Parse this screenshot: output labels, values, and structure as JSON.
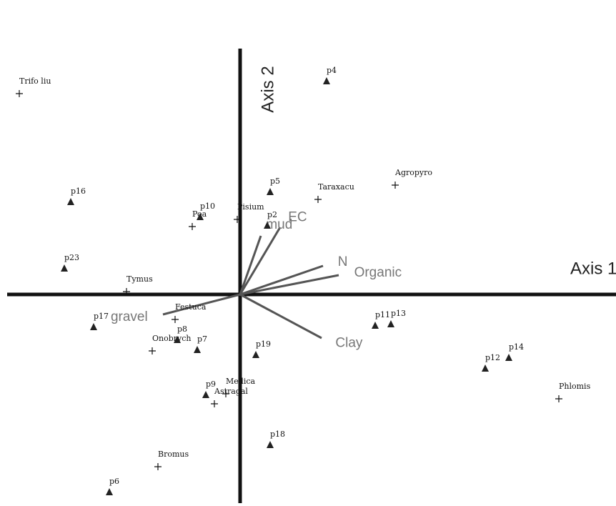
{
  "chart_data": {
    "type": "biplot",
    "x_label": "Axis 1",
    "y_label": "Axis 2",
    "xlim": [
      -3.36,
      5.26
    ],
    "ylim": [
      -2.92,
      4.12
    ],
    "axis_color": "#111",
    "site_color": "#222",
    "species_color": "#111",
    "vector_color": "#555",
    "sites": {
      "names": [
        "p4",
        "p16",
        "p23",
        "p5",
        "p10",
        "p2",
        "p17",
        "p8",
        "p7",
        "p19",
        "p11",
        "p13",
        "p12",
        "p14",
        "p9",
        "p18",
        "p6"
      ],
      "x": [
        1.21,
        -2.37,
        -2.46,
        0.42,
        -0.56,
        0.38,
        -2.05,
        -0.88,
        -0.6,
        0.22,
        1.89,
        2.11,
        3.43,
        3.76,
        -0.48,
        0.42,
        -1.83
      ],
      "y": [
        2.98,
        1.29,
        0.36,
        1.43,
        1.08,
        0.96,
        -0.46,
        -0.64,
        -0.78,
        -0.85,
        -0.44,
        -0.42,
        -1.04,
        -0.89,
        -1.41,
        -2.11,
        -2.77
      ]
    },
    "species": {
      "names": [
        "Trifo liu",
        "Agropyro",
        "Taraxacu",
        "Poa",
        "Pisium",
        "Tymus",
        "Festuca",
        "Onobrych",
        "Medica",
        "Astragal",
        "Phlomis",
        "Bromus"
      ],
      "x": [
        -3.09,
        2.17,
        1.09,
        -0.67,
        -0.04,
        -1.59,
        -0.91,
        -1.23,
        -0.2,
        -0.36,
        4.46,
        -1.15
      ],
      "y": [
        2.81,
        1.53,
        1.33,
        0.95,
        1.05,
        0.04,
        -0.35,
        -0.79,
        -1.39,
        -1.53,
        -1.46,
        -2.41
      ]
    },
    "vectors": {
      "names": [
        "EC",
        "mud",
        "N",
        "Organic",
        "Clay",
        "gravel"
      ],
      "x": [
        0.56,
        0.29,
        1.16,
        1.38,
        1.14,
        -1.08
      ],
      "y": [
        0.94,
        0.82,
        0.4,
        0.27,
        -0.61,
        -0.28
      ]
    }
  }
}
